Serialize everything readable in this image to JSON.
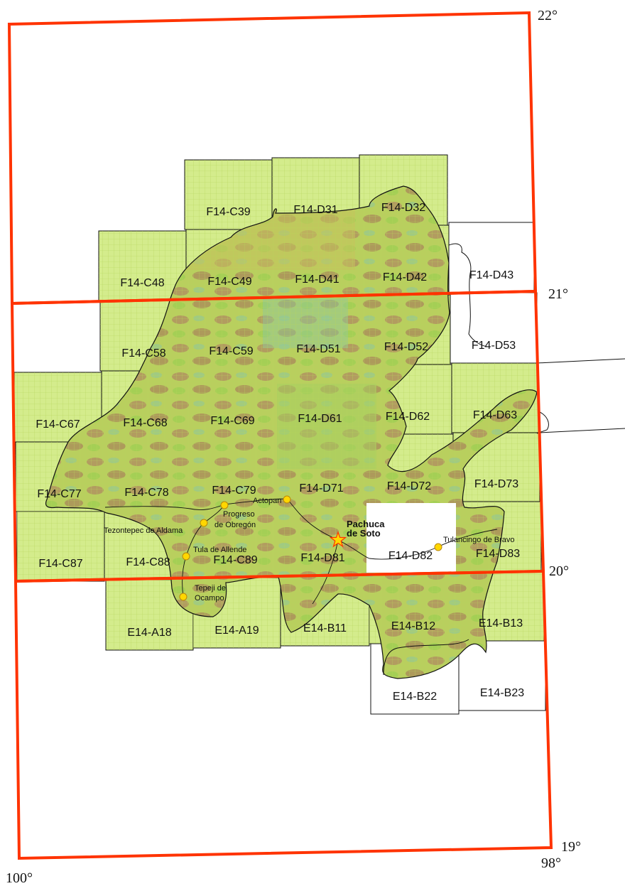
{
  "colors": {
    "frame": "#ff3300",
    "tile_fill": "#d4ec8c",
    "tile_grid": "#b8d860",
    "relief_low": "#9fcf52",
    "relief_mid": "#c7c35c",
    "relief_high": "#b08a60",
    "relief_cool": "#8fc79a",
    "city_marker": "#ffd700",
    "capital_marker": "#ffd700"
  },
  "degree_labels": {
    "lat_22": "22°",
    "lat_21": "21°",
    "lat_20": "20°",
    "lat_19": "19°",
    "lon_98": "98°",
    "lon_100": "100°"
  },
  "tiles": [
    {
      "id": "F14-C39",
      "label": "F14-C39",
      "covered": true
    },
    {
      "id": "F14-D31",
      "label": "F14-D31",
      "covered": true
    },
    {
      "id": "F14-D32",
      "label": "F14-D32",
      "covered": true
    },
    {
      "id": "F14-C48",
      "label": "F14-C48",
      "covered": true
    },
    {
      "id": "F14-C49",
      "label": "F14-C49",
      "covered": true
    },
    {
      "id": "F14-D41",
      "label": "F14-D41",
      "covered": true
    },
    {
      "id": "F14-D42",
      "label": "F14-D42",
      "covered": true
    },
    {
      "id": "F14-D43",
      "label": "F14-D43",
      "covered": false
    },
    {
      "id": "F14-C58",
      "label": "F14-C58",
      "covered": true
    },
    {
      "id": "F14-C59",
      "label": "F14-C59",
      "covered": true
    },
    {
      "id": "F14-D51",
      "label": "F14-D51",
      "covered": true
    },
    {
      "id": "F14-D52",
      "label": "F14-D52",
      "covered": true
    },
    {
      "id": "F14-D53",
      "label": "F14-D53",
      "covered": false
    },
    {
      "id": "F14-C67",
      "label": "F14-C67",
      "covered": true
    },
    {
      "id": "F14-C68",
      "label": "F14-C68",
      "covered": true
    },
    {
      "id": "F14-C69",
      "label": "F14-C69",
      "covered": true
    },
    {
      "id": "F14-D61",
      "label": "F14-D61",
      "covered": true
    },
    {
      "id": "F14-D62",
      "label": "F14-D62",
      "covered": true
    },
    {
      "id": "F14-D63",
      "label": "F14-D63",
      "covered": true
    },
    {
      "id": "F14-C77",
      "label": "F14-C77",
      "covered": true
    },
    {
      "id": "F14-C78",
      "label": "F14-C78",
      "covered": true
    },
    {
      "id": "F14-C79",
      "label": "F14-C79",
      "covered": true
    },
    {
      "id": "F14-D71",
      "label": "F14-D71",
      "covered": true
    },
    {
      "id": "F14-D72",
      "label": "F14-D72",
      "covered": true
    },
    {
      "id": "F14-D73",
      "label": "F14-D73",
      "covered": true
    },
    {
      "id": "F14-C87",
      "label": "F14-C87",
      "covered": true
    },
    {
      "id": "F14-C88",
      "label": "F14-C88",
      "covered": true
    },
    {
      "id": "F14-C89",
      "label": "F14-C89",
      "covered": true
    },
    {
      "id": "F14-D81",
      "label": "F14-D81",
      "covered": true
    },
    {
      "id": "F14-D82",
      "label": "F14-D82",
      "covered": false
    },
    {
      "id": "F14-D83",
      "label": "F14-D83",
      "covered": true
    },
    {
      "id": "E14-A18",
      "label": "E14-A18",
      "covered": true
    },
    {
      "id": "E14-A19",
      "label": "E14-A19",
      "covered": true
    },
    {
      "id": "E14-B11",
      "label": "E14-B11",
      "covered": true
    },
    {
      "id": "E14-B12",
      "label": "E14-B12",
      "covered": true
    },
    {
      "id": "E14-B13",
      "label": "E14-B13",
      "covered": true
    },
    {
      "id": "E14-B22",
      "label": "E14-B22",
      "covered": false
    },
    {
      "id": "E14-B23",
      "label": "E14-B23",
      "covered": false
    }
  ],
  "cities": [
    {
      "id": "actopan",
      "name": "Actopan"
    },
    {
      "id": "progreso",
      "name_line1": "Progreso",
      "name_line2": "de Obregón"
    },
    {
      "id": "tezontepec",
      "name": "Tezontepec de Aldama"
    },
    {
      "id": "tula",
      "name": "Tula de Allende"
    },
    {
      "id": "tepeji",
      "name_line1": "Tepeji de",
      "name_line2": "Ocampo"
    },
    {
      "id": "tulancingo",
      "name": "Tulancingo de Bravo"
    }
  ],
  "capital": {
    "name_line1": "Pachuca",
    "name_line2": "de Soto",
    "marker_icon": "star-icon"
  }
}
